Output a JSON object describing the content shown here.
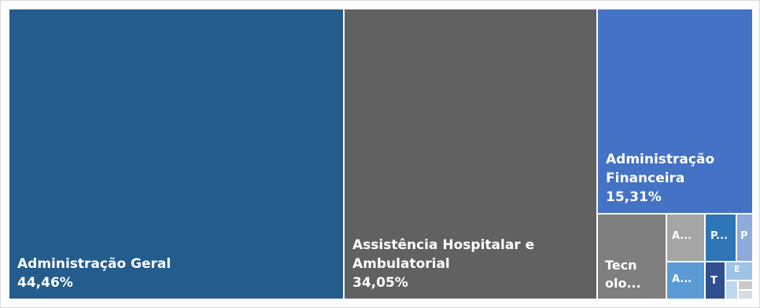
{
  "chart_data": {
    "type": "treemap",
    "items": [
      {
        "label": "Administração Geral",
        "value_label": "44,46%",
        "value": 44.46,
        "color": "#245c8e"
      },
      {
        "label": "Assistência Hospitalar e Ambulatorial",
        "value_label": "34,05%",
        "value": 34.05,
        "color": "#616161"
      },
      {
        "label": "Administração Financeira",
        "value_label": "15,31%",
        "value": 15.31,
        "color": "#4472c4"
      },
      {
        "label": "Tecn olo...",
        "value_label": "",
        "color": "#7f7f7f"
      },
      {
        "label": "A...",
        "value_label": "",
        "color": "#a5a5a5"
      },
      {
        "label": "A...",
        "value_label": "",
        "color": "#5b9bd5"
      },
      {
        "label": "P...",
        "value_label": "",
        "color": "#2e75b6"
      },
      {
        "label": "P",
        "value_label": "",
        "color": "#8faadc"
      },
      {
        "label": "T",
        "value_label": "",
        "color": "#2f4f8f"
      },
      {
        "label": "E",
        "value_label": "",
        "color": "#9dc3e6"
      },
      {
        "label": "",
        "value_label": "",
        "color": "#bdd7ee"
      },
      {
        "label": "",
        "value_label": "",
        "color": "#c9c9c9"
      },
      {
        "label": "",
        "value_label": "",
        "color": "#d6dce4"
      }
    ]
  }
}
